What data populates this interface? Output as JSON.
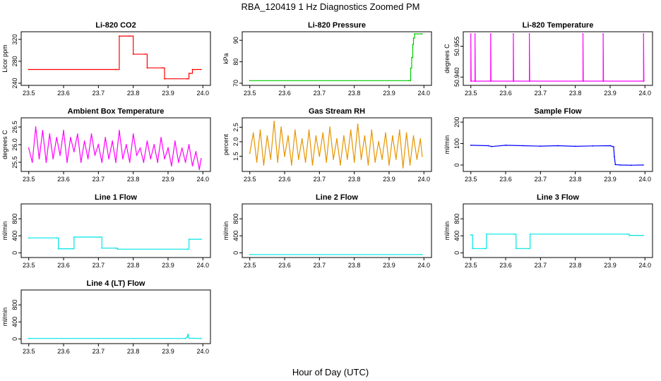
{
  "figure": {
    "title": "RBA_120419  1 Hz Diagnostics Zoomed PM",
    "xlabel": "Hour of Day (UTC)"
  },
  "chart_data": [
    {
      "type": "line",
      "title": "Li-820 CO2",
      "ylabel": "Licor ppm",
      "color": "#ff0000",
      "step": true,
      "xlim": [
        23.5,
        24.0
      ],
      "ylim": [
        240,
        330
      ],
      "xticks": [
        "23.5",
        "23.6",
        "23.7",
        "23.8",
        "23.9",
        "24.0"
      ],
      "yticks": [
        "240",
        "280",
        "320"
      ],
      "x": [
        23.5,
        23.75,
        23.76,
        23.79,
        23.8,
        23.835,
        23.84,
        23.885,
        23.89,
        23.955,
        23.96,
        23.97,
        23.995
      ],
      "y": [
        265,
        265,
        326,
        326,
        293,
        293,
        268,
        268,
        248,
        248,
        258,
        265,
        265
      ]
    },
    {
      "type": "line",
      "title": "Li-820 Pressure",
      "ylabel": "kPa",
      "color": "#00cc00",
      "step": true,
      "xlim": [
        23.5,
        24.0
      ],
      "ylim": [
        70,
        93
      ],
      "xticks": [
        "23.5",
        "23.6",
        "23.7",
        "23.8",
        "23.9",
        "24.0"
      ],
      "yticks": [
        "70",
        "80",
        "90"
      ],
      "x": [
        23.5,
        23.955,
        23.96,
        23.962,
        23.965,
        23.968,
        23.97,
        23.973,
        23.995
      ],
      "y": [
        71.2,
        71.2,
        71.2,
        77,
        82,
        88,
        91,
        93,
        93
      ]
    },
    {
      "type": "line",
      "title": "Li-820 Temperature",
      "ylabel": "degrees C",
      "color": "#ff00ff",
      "step": false,
      "xlim": [
        23.5,
        24.0
      ],
      "ylim": [
        50.937,
        50.961
      ],
      "xticks": [
        "23.5",
        "23.6",
        "23.7",
        "23.8",
        "23.9",
        "24.0"
      ],
      "yticks": [
        "50.940",
        "50.955"
      ],
      "x": [
        23.5,
        23.5,
        23.501,
        23.512,
        23.512,
        23.513,
        23.557,
        23.557,
        23.558,
        23.622,
        23.622,
        23.623,
        23.668,
        23.668,
        23.669,
        23.822,
        23.822,
        23.823,
        23.88,
        23.88,
        23.881,
        23.996,
        23.996,
        23.997
      ],
      "y": [
        50.938,
        50.961,
        50.938,
        50.938,
        50.961,
        50.938,
        50.938,
        50.961,
        50.938,
        50.938,
        50.961,
        50.938,
        50.938,
        50.961,
        50.938,
        50.938,
        50.961,
        50.938,
        50.938,
        50.961,
        50.938,
        50.938,
        50.961,
        50.938
      ]
    },
    {
      "type": "line",
      "title": "Ambient Box Temperature",
      "ylabel": "degrees C",
      "color": "#ff00ff",
      "step": false,
      "xlim": [
        23.5,
        24.0
      ],
      "ylim": [
        25.3,
        26.7
      ],
      "xticks": [
        "23.5",
        "23.6",
        "23.7",
        "23.8",
        "23.9",
        "24.0"
      ],
      "yticks": [
        "25.5",
        "26.0",
        "26.5"
      ],
      "x": [
        23.5,
        23.51,
        23.52,
        23.53,
        23.54,
        23.55,
        23.56,
        23.57,
        23.58,
        23.59,
        23.6,
        23.61,
        23.62,
        23.63,
        23.64,
        23.65,
        23.66,
        23.67,
        23.68,
        23.69,
        23.7,
        23.71,
        23.72,
        23.73,
        23.74,
        23.75,
        23.76,
        23.77,
        23.78,
        23.79,
        23.8,
        23.81,
        23.82,
        23.83,
        23.84,
        23.85,
        23.86,
        23.87,
        23.88,
        23.89,
        23.9,
        23.91,
        23.92,
        23.93,
        23.94,
        23.95,
        23.96,
        23.97,
        23.98,
        23.99,
        23.995
      ],
      "y": [
        25.9,
        25.5,
        26.5,
        25.6,
        26.4,
        25.5,
        26.3,
        25.6,
        26.2,
        25.7,
        26.4,
        25.5,
        26.2,
        25.8,
        26.3,
        25.5,
        26.1,
        25.6,
        26.3,
        25.7,
        26.0,
        25.5,
        26.2,
        25.6,
        26.1,
        25.5,
        26.4,
        25.6,
        26.0,
        25.5,
        26.3,
        25.7,
        25.9,
        25.5,
        26.1,
        25.6,
        26.0,
        25.5,
        26.2,
        25.6,
        25.9,
        25.4,
        26.1,
        25.5,
        25.9,
        25.5,
        26.0,
        25.4,
        25.8,
        25.3,
        25.6
      ]
    },
    {
      "type": "line",
      "title": "Gas Stream RH",
      "ylabel": "percent",
      "color": "#e69500",
      "step": false,
      "xlim": [
        23.5,
        24.0
      ],
      "ylim": [
        1.05,
        2.75
      ],
      "xticks": [
        "23.5",
        "23.6",
        "23.7",
        "23.8",
        "23.9",
        "24.0"
      ],
      "yticks": [
        "1.5",
        "2.0",
        "2.5"
      ],
      "x": [
        23.5,
        23.51,
        23.52,
        23.53,
        23.54,
        23.55,
        23.56,
        23.57,
        23.58,
        23.59,
        23.6,
        23.61,
        23.62,
        23.63,
        23.64,
        23.65,
        23.66,
        23.67,
        23.68,
        23.69,
        23.7,
        23.71,
        23.72,
        23.73,
        23.74,
        23.75,
        23.76,
        23.77,
        23.78,
        23.79,
        23.8,
        23.81,
        23.82,
        23.83,
        23.84,
        23.85,
        23.86,
        23.87,
        23.88,
        23.89,
        23.9,
        23.91,
        23.92,
        23.93,
        23.94,
        23.95,
        23.96,
        23.97,
        23.98,
        23.99,
        23.995
      ],
      "y": [
        1.6,
        2.3,
        1.3,
        2.4,
        1.2,
        2.2,
        1.4,
        2.7,
        1.3,
        2.5,
        1.5,
        2.2,
        1.2,
        2.4,
        1.4,
        2.1,
        1.3,
        2.4,
        1.2,
        2.2,
        1.5,
        2.3,
        1.3,
        2.5,
        1.4,
        2.1,
        1.2,
        2.2,
        1.4,
        2.4,
        1.3,
        2.6,
        1.4,
        2.2,
        1.2,
        2.4,
        1.3,
        2.0,
        1.4,
        2.3,
        1.2,
        2.2,
        1.4,
        2.4,
        1.1,
        2.3,
        1.2,
        2.2,
        1.4,
        2.1,
        1.5
      ]
    },
    {
      "type": "line",
      "title": "Sample Flow",
      "ylabel": "ml/min",
      "color": "#0000ff",
      "step": false,
      "xlim": [
        23.5,
        24.0
      ],
      "ylim": [
        -20,
        210
      ],
      "xticks": [
        "23.5",
        "23.6",
        "23.7",
        "23.8",
        "23.9",
        "24.0"
      ],
      "yticks": [
        "0",
        "100",
        "200"
      ],
      "x": [
        23.5,
        23.55,
        23.56,
        23.6,
        23.65,
        23.7,
        23.75,
        23.8,
        23.85,
        23.9,
        23.91,
        23.912,
        23.915,
        23.93,
        23.96,
        23.995
      ],
      "y": [
        92,
        90,
        86,
        92,
        90,
        88,
        90,
        87,
        89,
        90,
        85,
        40,
        2,
        0,
        -1,
        0
      ]
    },
    {
      "type": "line",
      "title": "Line 1 Flow",
      "ylabel": "ml/min",
      "color": "#00e5e5",
      "step": true,
      "xlim": [
        23.5,
        24.0
      ],
      "ylim": [
        -60,
        1100
      ],
      "xticks": [
        "23.5",
        "23.6",
        "23.7",
        "23.8",
        "23.9",
        "24.0"
      ],
      "yticks": [
        "0",
        "400",
        "800"
      ],
      "x": [
        23.5,
        23.58,
        23.585,
        23.625,
        23.63,
        23.705,
        23.71,
        23.75,
        23.755,
        23.955,
        23.96,
        23.995
      ],
      "y": [
        350,
        350,
        95,
        95,
        370,
        370,
        110,
        110,
        85,
        85,
        320,
        320
      ]
    },
    {
      "type": "line",
      "title": "Line 2 Flow",
      "ylabel": "ml/min",
      "color": "#00e5e5",
      "step": false,
      "xlim": [
        23.5,
        24.0
      ],
      "ylim": [
        -60,
        1100
      ],
      "xticks": [
        "23.5",
        "23.6",
        "23.7",
        "23.8",
        "23.9",
        "24.0"
      ],
      "yticks": [
        "0",
        "400",
        "800"
      ],
      "x": [
        23.5,
        23.995
      ],
      "y": [
        -40,
        -40
      ]
    },
    {
      "type": "line",
      "title": "Line 3 Flow",
      "ylabel": "ml/min",
      "color": "#00e5e5",
      "step": true,
      "xlim": [
        23.5,
        24.0
      ],
      "ylim": [
        -60,
        1100
      ],
      "xticks": [
        "23.5",
        "23.6",
        "23.7",
        "23.8",
        "23.9",
        "24.0"
      ],
      "yticks": [
        "0",
        "400",
        "800"
      ],
      "x": [
        23.5,
        23.505,
        23.54,
        23.545,
        23.625,
        23.63,
        23.665,
        23.67,
        23.95,
        23.955,
        23.995
      ],
      "y": [
        420,
        100,
        100,
        440,
        440,
        100,
        100,
        440,
        440,
        410,
        410
      ]
    },
    {
      "type": "line",
      "title": "Line 4 (LT) Flow",
      "ylabel": "ml/min",
      "color": "#00e5e5",
      "step": false,
      "xlim": [
        23.5,
        24.0
      ],
      "ylim": [
        -60,
        1100
      ],
      "xticks": [
        "23.5",
        "23.6",
        "23.7",
        "23.8",
        "23.9",
        "24.0"
      ],
      "yticks": [
        "0",
        "400",
        "800"
      ],
      "x": [
        23.5,
        23.95,
        23.955,
        23.957,
        23.96,
        23.995
      ],
      "y": [
        10,
        10,
        40,
        110,
        15,
        10
      ]
    }
  ]
}
